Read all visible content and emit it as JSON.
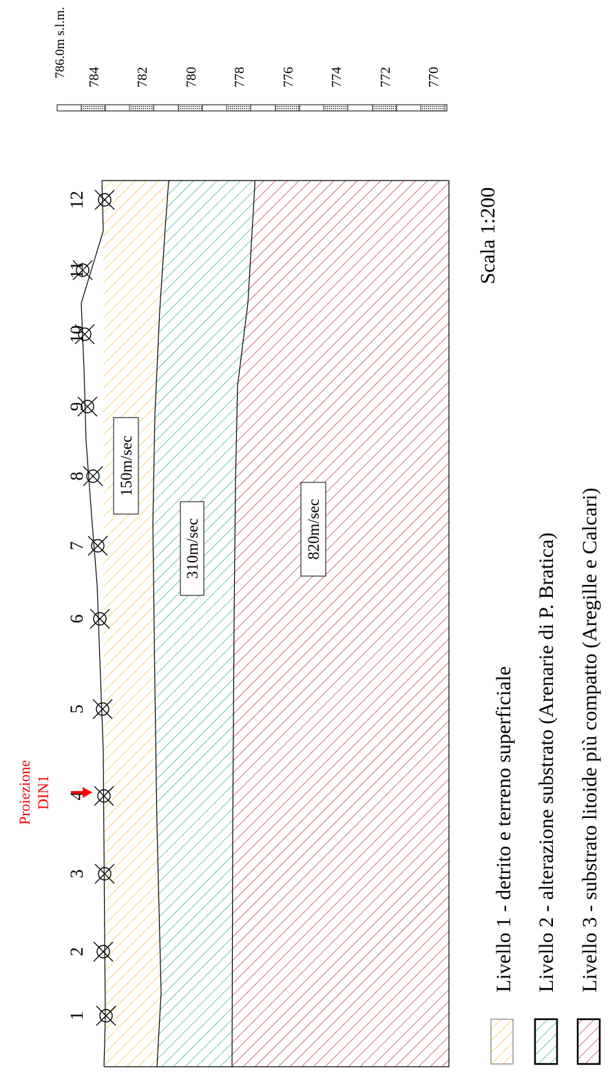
{
  "elevation_scale": {
    "top_label": "786.0m s.l.m.",
    "ticks": [
      "784",
      "782",
      "780",
      "778",
      "776",
      "774",
      "772",
      "770"
    ]
  },
  "geophones": {
    "labels": [
      "1",
      "2",
      "3",
      "4",
      "5",
      "6",
      "7",
      "8",
      "9",
      "10",
      "11",
      "12"
    ]
  },
  "projection": {
    "line1": "Proiezione",
    "line2": "DIN1",
    "color": "#ff0000"
  },
  "velocities": {
    "layer1": "150m/sec",
    "layer2": "310m/sec",
    "layer3": "820m/sec"
  },
  "scale_label": "Scala 1:200",
  "legend": [
    {
      "text": "Livello 1 - detrito e terreno superficiale",
      "color": "#f2c12e"
    },
    {
      "text": "Livello 2 -  alterazione substrato (Arenarie di P. Bratica)",
      "color": "#1fae7a"
    },
    {
      "text": "Livello 3 - substrato litoide più compatto (Aregille e Calcari)",
      "color": "#b3262c"
    }
  ]
}
